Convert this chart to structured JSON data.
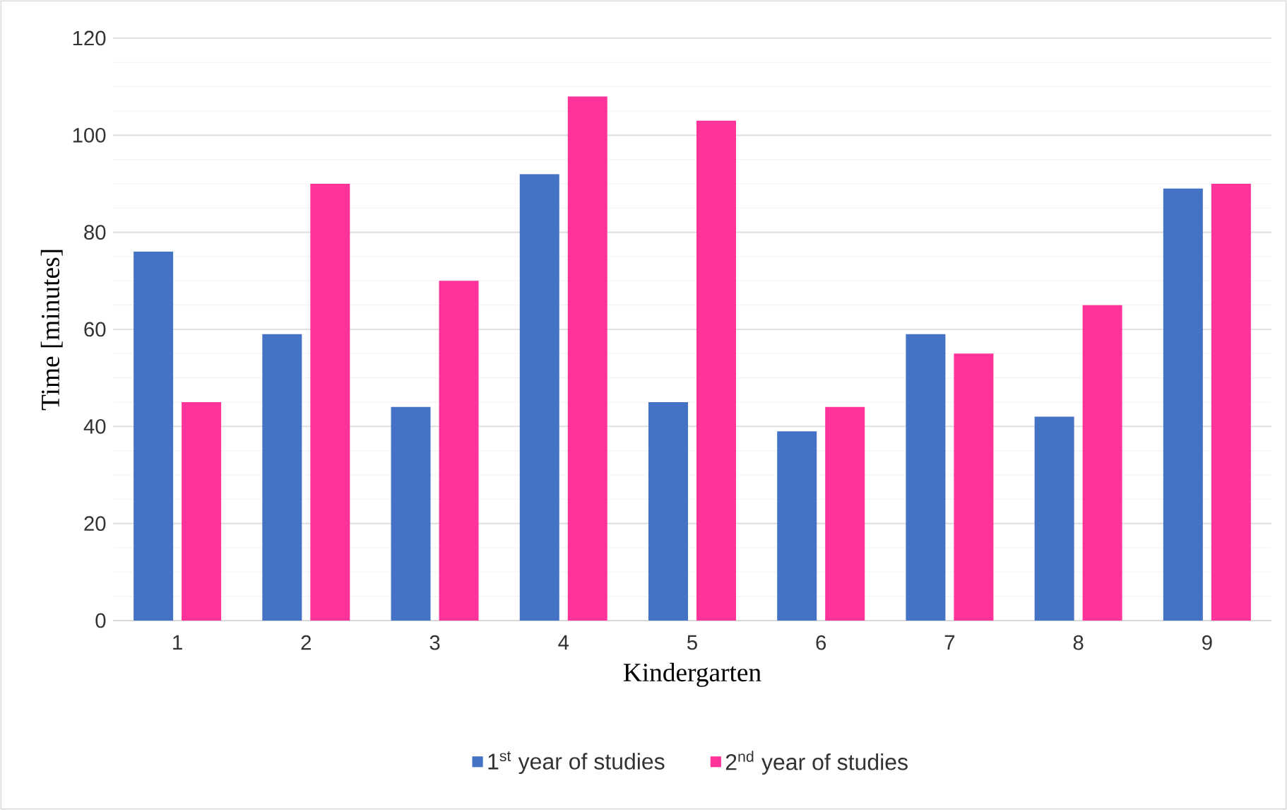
{
  "chart_data": {
    "type": "bar",
    "xlabel": "Kindergarten",
    "ylabel": "Time [minutes]",
    "categories": [
      "1",
      "2",
      "3",
      "4",
      "5",
      "6",
      "7",
      "8",
      "9"
    ],
    "series": [
      {
        "name": "1$^{st}$ year of studies",
        "color": "#4472c4",
        "values": [
          76,
          59,
          44,
          92,
          45,
          39,
          59,
          42,
          89
        ]
      },
      {
        "name": "2$^{nd}$ year of studies",
        "color": "#ff3399",
        "values": [
          45,
          90,
          70,
          108,
          103,
          44,
          55,
          65,
          90
        ]
      }
    ],
    "ylim": [
      0,
      120
    ],
    "yticks": [
      0,
      20,
      40,
      60,
      80,
      100,
      120
    ],
    "grid": "y",
    "legend": "bottom"
  }
}
